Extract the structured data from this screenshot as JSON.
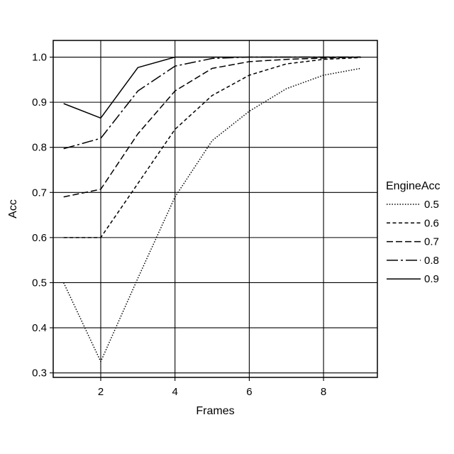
{
  "chart_data": {
    "type": "line",
    "title": "",
    "xlabel": "Frames",
    "ylabel": "Acc",
    "xlim": [
      0.72,
      9.45
    ],
    "ylim": [
      0.29,
      1.037
    ],
    "xticks": [
      2,
      4,
      6,
      8
    ],
    "yticks": [
      0.3,
      0.4,
      0.5,
      0.6,
      0.7,
      0.8,
      0.9,
      1.0
    ],
    "xtick_labels": [
      "2",
      "4",
      "6",
      "8"
    ],
    "ytick_labels": [
      "0.3",
      "0.4",
      "0.5",
      "0.6",
      "0.7",
      "0.8",
      "0.9",
      "1.0"
    ],
    "grid": true,
    "legend_title": "EngineAcc",
    "legend_position": "right",
    "series": [
      {
        "name": "0.5",
        "dash": "dotted",
        "x": [
          1,
          2,
          3,
          4,
          5,
          6,
          7,
          8,
          9
        ],
        "y": [
          0.5,
          0.325,
          0.51,
          0.69,
          0.815,
          0.88,
          0.93,
          0.96,
          0.975
        ]
      },
      {
        "name": "0.6",
        "dash": "short-dash",
        "x": [
          1,
          2,
          3,
          4,
          5,
          6,
          7,
          8,
          9
        ],
        "y": [
          0.6,
          0.6,
          0.72,
          0.84,
          0.915,
          0.96,
          0.985,
          0.995,
          0.999
        ]
      },
      {
        "name": "0.7",
        "dash": "dash",
        "x": [
          1,
          2,
          3,
          4,
          5,
          6,
          7,
          8,
          9
        ],
        "y": [
          0.69,
          0.707,
          0.83,
          0.925,
          0.975,
          0.99,
          0.995,
          0.998,
          1.0
        ]
      },
      {
        "name": "0.8",
        "dash": "long-dash",
        "x": [
          1,
          2,
          3,
          4,
          5,
          6,
          7,
          8,
          9
        ],
        "y": [
          0.797,
          0.82,
          0.925,
          0.98,
          0.997,
          1.0,
          1.0,
          1.0,
          1.0
        ]
      },
      {
        "name": "0.9",
        "dash": "solid",
        "x": [
          1,
          2,
          3,
          4,
          5,
          6,
          7,
          8,
          9
        ],
        "y": [
          0.897,
          0.865,
          0.977,
          1.0,
          1.0,
          1.0,
          1.0,
          1.0,
          1.0
        ]
      }
    ]
  }
}
